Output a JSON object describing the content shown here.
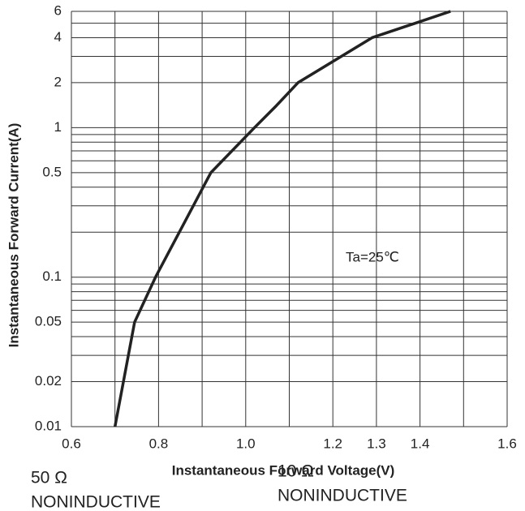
{
  "chart_data": {
    "type": "line",
    "xlabel": "Instantaneous Forward Voltage(V)",
    "ylabel": "Instantaneous Forward Current(A)",
    "annotations": [
      "Ta=25℃",
      "50 Ω",
      "NONINDUCTIVE",
      "10 Ω",
      "NONINDUCTIVE"
    ],
    "log_y": true,
    "grid": true,
    "xlim": [
      0.6,
      1.6
    ],
    "xticks": [
      0.6,
      0.8,
      {
        "value": 1.0,
        "label": "1.0"
      },
      1.2,
      1.3,
      1.4,
      1.6
    ],
    "xgrid": [
      0.6,
      0.7,
      0.8,
      0.9,
      1.0,
      1.1,
      1.2,
      1.3,
      1.4,
      1.5,
      1.6
    ],
    "ylim": [
      0.01,
      6
    ],
    "yticks": [
      6,
      4,
      2,
      1,
      0.5,
      0.1,
      0.05,
      0.02,
      0.01
    ],
    "ygrid": [
      6,
      5,
      4,
      3,
      2,
      1,
      0.9,
      0.8,
      0.7,
      0.6,
      0.5,
      0.4,
      0.3,
      0.2,
      0.1,
      0.09,
      0.08,
      0.07,
      0.06,
      0.05,
      0.04,
      0.03,
      0.02,
      0.01
    ],
    "series": [
      {
        "color": "#222222",
        "x": [
          0.7,
          0.745,
          0.793,
          0.92,
          1.02,
          1.07,
          1.12,
          1.29,
          1.47
        ],
        "values": [
          0.01,
          0.05,
          0.1,
          0.5,
          1,
          1.4,
          2,
          4,
          6
        ]
      }
    ]
  }
}
